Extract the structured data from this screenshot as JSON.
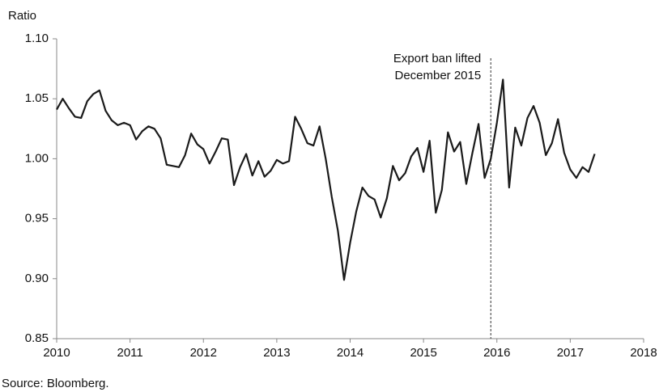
{
  "chart_data": {
    "type": "line",
    "y_axis_label": "Ratio",
    "source": "Source: Bloomberg.",
    "annotation": {
      "x": 2015.917,
      "lines": [
        "Export ban lifted",
        "December 2015"
      ]
    },
    "x": [
      2010.0,
      2010.083,
      2010.167,
      2010.25,
      2010.333,
      2010.417,
      2010.5,
      2010.583,
      2010.667,
      2010.75,
      2010.833,
      2010.917,
      2011.0,
      2011.083,
      2011.167,
      2011.25,
      2011.333,
      2011.417,
      2011.5,
      2011.583,
      2011.667,
      2011.75,
      2011.833,
      2011.917,
      2012.0,
      2012.083,
      2012.167,
      2012.25,
      2012.333,
      2012.417,
      2012.5,
      2012.583,
      2012.667,
      2012.75,
      2012.833,
      2012.917,
      2013.0,
      2013.083,
      2013.167,
      2013.25,
      2013.333,
      2013.417,
      2013.5,
      2013.583,
      2013.667,
      2013.75,
      2013.833,
      2013.917,
      2014.0,
      2014.083,
      2014.167,
      2014.25,
      2014.333,
      2014.417,
      2014.5,
      2014.583,
      2014.667,
      2014.75,
      2014.833,
      2014.917,
      2015.0,
      2015.083,
      2015.167,
      2015.25,
      2015.333,
      2015.417,
      2015.5,
      2015.583,
      2015.667,
      2015.75,
      2015.833,
      2015.917,
      2016.0,
      2016.083,
      2016.167,
      2016.25,
      2016.333,
      2016.417,
      2016.5,
      2016.583,
      2016.667,
      2016.75,
      2016.833,
      2016.917,
      2017.0,
      2017.083,
      2017.167,
      2017.25,
      2017.333
    ],
    "series": [
      {
        "color": "#1a1a1a",
        "values": [
          1.041,
          1.05,
          1.042,
          1.035,
          1.034,
          1.048,
          1.054,
          1.057,
          1.04,
          1.032,
          1.028,
          1.03,
          1.028,
          1.016,
          1.023,
          1.027,
          1.025,
          1.017,
          0.995,
          0.994,
          0.993,
          1.003,
          1.021,
          1.012,
          1.008,
          0.996,
          1.006,
          1.017,
          1.016,
          0.978,
          0.993,
          1.004,
          0.986,
          0.998,
          0.985,
          0.99,
          0.999,
          0.996,
          0.998,
          1.035,
          1.025,
          1.013,
          1.011,
          1.027,
          1.0,
          0.968,
          0.94,
          0.899,
          0.93,
          0.956,
          0.976,
          0.969,
          0.966,
          0.951,
          0.967,
          0.994,
          0.982,
          0.988,
          1.002,
          1.009,
          0.989,
          1.015,
          0.955,
          0.974,
          1.022,
          1.006,
          1.014,
          0.979,
          1.005,
          1.029,
          0.984,
          1.0,
          1.03,
          1.066,
          0.976,
          1.026,
          1.011,
          1.034,
          1.044,
          1.03,
          1.003,
          1.013,
          1.033,
          1.005,
          0.991,
          0.984,
          0.993,
          0.989,
          1.004
        ]
      }
    ],
    "xlim": [
      2010,
      2018
    ],
    "xticks": [
      2010,
      2011,
      2012,
      2013,
      2014,
      2015,
      2016,
      2017,
      2018
    ],
    "ylim": [
      0.85,
      1.1
    ],
    "yticks": [
      0.85,
      {
        "value": 0.9,
        "label": "0.90"
      },
      0.95,
      {
        "value": 1.0,
        "label": "1.00"
      },
      1.05,
      {
        "value": 1.1,
        "label": "1.10"
      }
    ],
    "grid": false
  }
}
